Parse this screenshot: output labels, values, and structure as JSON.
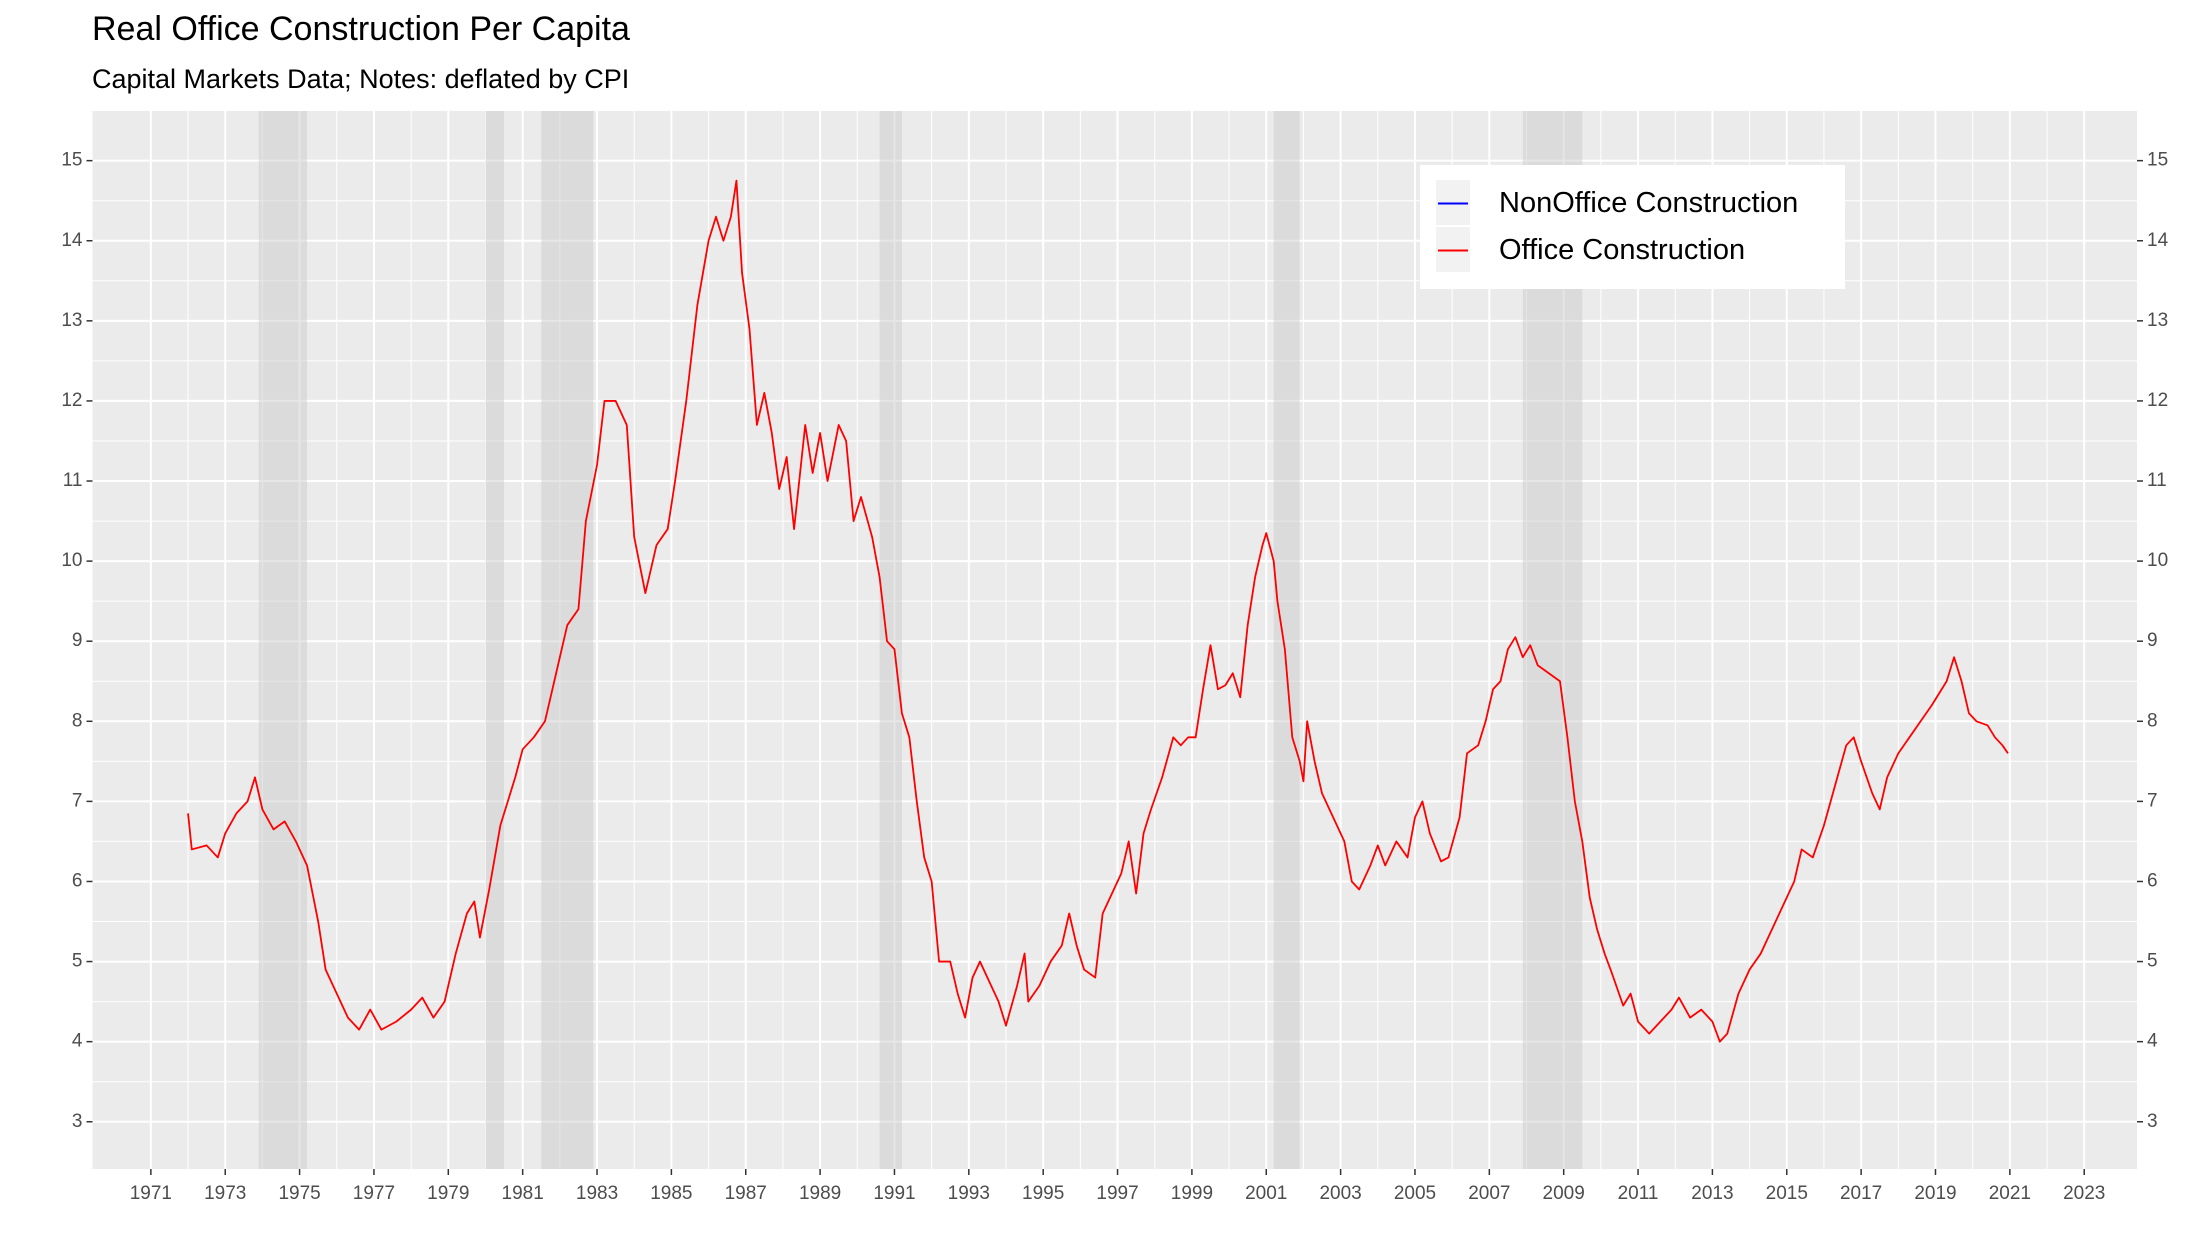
{
  "chart_data": {
    "type": "line",
    "title": "Real Office Construction Per Capita",
    "subtitle": "Capital Markets Data; Notes: deflated by CPI",
    "xlim": [
      1969.43,
      2024.42
    ],
    "xticks": [
      1971,
      1973,
      1975,
      1977,
      1979,
      1981,
      1983,
      1985,
      1987,
      1989,
      1991,
      1993,
      1995,
      1997,
      1999,
      2001,
      2003,
      2005,
      2007,
      2009,
      2011,
      2013,
      2015,
      2017,
      2019,
      2021,
      2023
    ],
    "ylim": [
      2.41,
      15.62
    ],
    "yticks": [
      3,
      4,
      5,
      6,
      7,
      8,
      9,
      10,
      11,
      12,
      13,
      14,
      15
    ],
    "grid": true,
    "legend_position": "top-right",
    "shaded_ranges": [
      [
        1973.9,
        1975.2
      ],
      [
        1980.0,
        1980.5
      ],
      [
        1981.5,
        1982.9
      ],
      [
        1990.6,
        1991.2
      ],
      [
        2001.2,
        2001.9
      ],
      [
        2007.9,
        2009.5
      ]
    ],
    "series": [
      {
        "name": "NonOffice Construction",
        "color": "#0000ff",
        "x": [],
        "values": []
      },
      {
        "name": "Office Construction",
        "color": "#ff0000",
        "x": [
          1972.0,
          1972.1,
          1972.5,
          1972.8,
          1973.0,
          1973.3,
          1973.6,
          1973.8,
          1974.0,
          1974.3,
          1974.6,
          1974.9,
          1975.2,
          1975.5,
          1975.7,
          1976.0,
          1976.3,
          1976.6,
          1976.9,
          1977.2,
          1977.6,
          1978.0,
          1978.3,
          1978.6,
          1978.9,
          1979.2,
          1979.5,
          1979.7,
          1979.85,
          1980.1,
          1980.4,
          1980.8,
          1981.0,
          1981.3,
          1981.6,
          1981.9,
          1982.2,
          1982.5,
          1982.7,
          1983.0,
          1983.2,
          1983.5,
          1983.8,
          1984.0,
          1984.3,
          1984.6,
          1984.9,
          1985.1,
          1985.4,
          1985.7,
          1986.0,
          1986.2,
          1986.4,
          1986.6,
          1986.75,
          1986.9,
          1987.1,
          1987.3,
          1987.5,
          1987.7,
          1987.9,
          1988.1,
          1988.3,
          1988.6,
          1988.8,
          1989.0,
          1989.2,
          1989.5,
          1989.7,
          1989.9,
          1990.1,
          1990.4,
          1990.6,
          1990.8,
          1991.0,
          1991.2,
          1991.4,
          1991.6,
          1991.8,
          1992.0,
          1992.2,
          1992.5,
          1992.7,
          1992.9,
          1993.1,
          1993.3,
          1993.6,
          1993.8,
          1994.0,
          1994.3,
          1994.5,
          1994.6,
          1994.9,
          1995.2,
          1995.5,
          1995.7,
          1995.9,
          1996.1,
          1996.4,
          1996.6,
          1996.9,
          1997.1,
          1997.3,
          1997.5,
          1997.7,
          1997.9,
          1998.2,
          1998.5,
          1998.7,
          1998.9,
          1999.1,
          1999.3,
          1999.5,
          1999.7,
          1999.9,
          2000.1,
          2000.3,
          2000.5,
          2000.7,
          2000.9,
          2001.0,
          2001.2,
          2001.3,
          2001.5,
          2001.7,
          2001.9,
          2002.0,
          2002.1,
          2002.3,
          2002.5,
          2002.8,
          2003.1,
          2003.3,
          2003.5,
          2003.8,
          2004.0,
          2004.2,
          2004.5,
          2004.8,
          2005.0,
          2005.2,
          2005.4,
          2005.7,
          2005.9,
          2006.2,
          2006.4,
          2006.7,
          2006.9,
          2007.1,
          2007.3,
          2007.5,
          2007.7,
          2007.9,
          2008.1,
          2008.3,
          2008.6,
          2008.9,
          2009.1,
          2009.3,
          2009.5,
          2009.7,
          2009.9,
          2010.1,
          2010.3,
          2010.6,
          2010.8,
          2011.0,
          2011.3,
          2011.6,
          2011.9,
          2012.1,
          2012.4,
          2012.7,
          2013.0,
          2013.2,
          2013.4,
          2013.7,
          2014.0,
          2014.3,
          2014.6,
          2014.9,
          2015.2,
          2015.4,
          2015.7,
          2016.0,
          2016.3,
          2016.6,
          2016.8,
          2017.0,
          2017.3,
          2017.5,
          2017.7,
          2018.0,
          2018.3,
          2018.6,
          2018.9,
          2019.1,
          2019.3,
          2019.5,
          2019.7,
          2019.9,
          2020.1,
          2020.4,
          2020.6,
          2020.8,
          2020.95
        ],
        "values": [
          6.85,
          6.4,
          6.45,
          6.3,
          6.6,
          6.85,
          7.0,
          7.3,
          6.9,
          6.65,
          6.75,
          6.5,
          6.2,
          5.5,
          4.9,
          4.6,
          4.3,
          4.15,
          4.4,
          4.15,
          4.25,
          4.4,
          4.55,
          4.3,
          4.5,
          5.1,
          5.6,
          5.75,
          5.3,
          5.9,
          6.7,
          7.3,
          7.65,
          7.8,
          8.0,
          8.6,
          9.2,
          9.4,
          10.5,
          11.2,
          12.0,
          12.0,
          11.7,
          10.3,
          9.6,
          10.2,
          10.4,
          11.0,
          12.0,
          13.2,
          14.0,
          14.3,
          14.0,
          14.3,
          14.75,
          13.6,
          12.9,
          11.7,
          12.1,
          11.6,
          10.9,
          11.3,
          10.4,
          11.7,
          11.1,
          11.6,
          11.0,
          11.7,
          11.5,
          10.5,
          10.8,
          10.3,
          9.8,
          9.0,
          8.9,
          8.1,
          7.8,
          7.0,
          6.3,
          6.0,
          5.0,
          5.0,
          4.6,
          4.3,
          4.8,
          5.0,
          4.7,
          4.5,
          4.2,
          4.7,
          5.1,
          4.5,
          4.7,
          5.0,
          5.2,
          5.6,
          5.2,
          4.9,
          4.8,
          5.6,
          5.9,
          6.1,
          6.5,
          5.85,
          6.6,
          6.9,
          7.3,
          7.8,
          7.7,
          7.8,
          7.8,
          8.4,
          8.95,
          8.4,
          8.45,
          8.6,
          8.3,
          9.2,
          9.8,
          10.2,
          10.35,
          10.0,
          9.5,
          8.9,
          7.8,
          7.5,
          7.25,
          8.0,
          7.5,
          7.1,
          6.8,
          6.5,
          6.0,
          5.9,
          6.2,
          6.45,
          6.2,
          6.5,
          6.3,
          6.8,
          7.0,
          6.6,
          6.25,
          6.3,
          6.8,
          7.6,
          7.7,
          8.0,
          8.4,
          8.5,
          8.9,
          9.05,
          8.8,
          8.95,
          8.7,
          8.6,
          8.5,
          7.8,
          7.0,
          6.5,
          5.8,
          5.4,
          5.1,
          4.85,
          4.45,
          4.6,
          4.25,
          4.1,
          4.25,
          4.4,
          4.55,
          4.3,
          4.4,
          4.25,
          4.0,
          4.1,
          4.6,
          4.9,
          5.1,
          5.4,
          5.7,
          6.0,
          6.4,
          6.3,
          6.7,
          7.2,
          7.7,
          7.8,
          7.5,
          7.1,
          6.9,
          7.3,
          7.6,
          7.8,
          8.0,
          8.2,
          8.35,
          8.5,
          8.8,
          8.5,
          8.1,
          8.0,
          7.95,
          7.8,
          7.7,
          7.6
        ]
      }
    ]
  }
}
